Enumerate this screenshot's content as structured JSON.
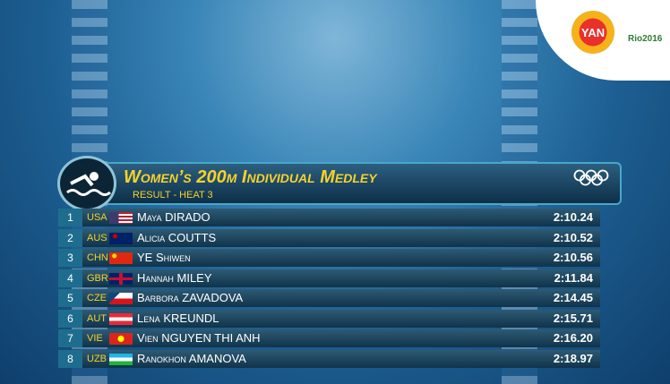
{
  "logos": {
    "channel": "YAN",
    "games": "Rio2016"
  },
  "header": {
    "title": "Women’s 200m Individual Medley",
    "subtitle": "Result - Heat 3"
  },
  "results": [
    {
      "rank": "1",
      "country": "USA",
      "name": "Maya DIRADO",
      "time": "2:10.24"
    },
    {
      "rank": "2",
      "country": "AUS",
      "name": "Alicia COUTTS",
      "time": "2:10.52"
    },
    {
      "rank": "3",
      "country": "CHN",
      "name": "YE Shiwen",
      "time": "2:10.56"
    },
    {
      "rank": "4",
      "country": "GBR",
      "name": "Hannah MILEY",
      "time": "2:11.84"
    },
    {
      "rank": "5",
      "country": "CZE",
      "name": "Barbora ZAVADOVA",
      "time": "2:14.45"
    },
    {
      "rank": "6",
      "country": "AUT",
      "name": "Lena KREUNDL",
      "time": "2:15.71"
    },
    {
      "rank": "7",
      "country": "VIE",
      "name": "Vien NGUYEN THI ANH",
      "time": "2:16.20"
    },
    {
      "rank": "8",
      "country": "UZB",
      "name": "Ranokhon AMANOVA",
      "time": "2:18.97"
    }
  ]
}
